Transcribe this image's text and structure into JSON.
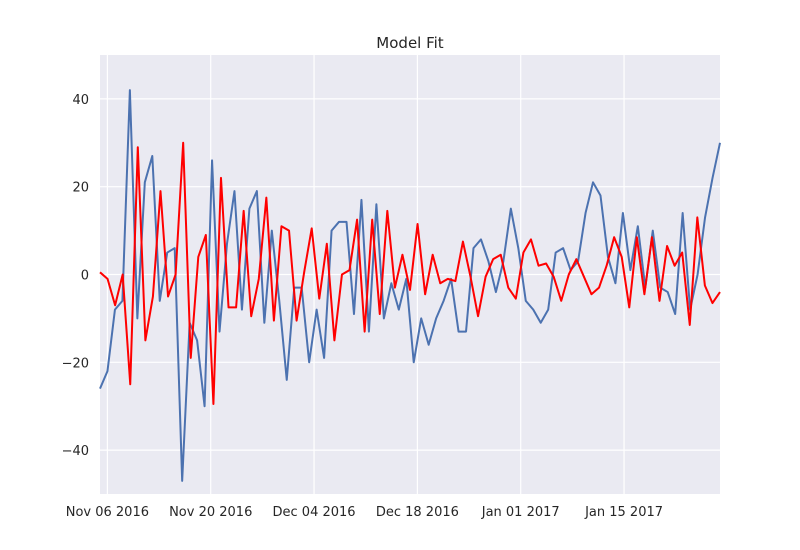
{
  "chart_data": {
    "type": "line",
    "title": "Model Fit",
    "xlabel": "",
    "ylabel": "",
    "x_start": "2016-11-05",
    "x_end": "2017-01-28",
    "xlim": [
      "2016-11-05",
      "2017-01-28"
    ],
    "ylim": [
      -50,
      50
    ],
    "x_ticks": [
      {
        "date": "2016-11-06",
        "label": "Nov 06 2016"
      },
      {
        "date": "2016-11-20",
        "label": "Nov 20 2016"
      },
      {
        "date": "2016-12-04",
        "label": "Dec 04 2016"
      },
      {
        "date": "2016-12-18",
        "label": "Dec 18 2016"
      },
      {
        "date": "2017-01-01",
        "label": "Jan 01 2017"
      },
      {
        "date": "2017-01-15",
        "label": "Jan 15 2017"
      }
    ],
    "y_ticks": [
      {
        "value": 40,
        "label": "40"
      },
      {
        "value": 20,
        "label": "20"
      },
      {
        "value": 0,
        "label": "0"
      },
      {
        "value": -20,
        "label": "−20"
      },
      {
        "value": -40,
        "label": "−40"
      }
    ],
    "grid": true,
    "legend": "none",
    "series": [
      {
        "color": "#4c72b0",
        "values": [
          -26,
          -22,
          -8,
          -6,
          42,
          -10,
          21,
          27,
          -6,
          5,
          6,
          -47,
          -11,
          -15,
          -30,
          26,
          -13,
          7,
          19,
          -8,
          15,
          19,
          -11,
          10,
          -6,
          -24,
          -3,
          -3,
          -20,
          -8,
          -19,
          10,
          12,
          12,
          -9,
          17,
          -13,
          16,
          -10,
          -2,
          -8,
          -1,
          -20,
          -10,
          -16,
          -10,
          -6,
          -1,
          -13,
          -13,
          6,
          8,
          3,
          -4,
          3,
          15,
          6,
          -6,
          -8,
          -11,
          -8,
          5,
          6,
          1,
          3,
          14,
          21,
          18,
          4,
          -2,
          14,
          1,
          11,
          -3,
          10,
          -3,
          -4,
          -9,
          14,
          -8,
          0,
          13,
          22,
          30
        ]
      },
      {
        "color": "#ff0000",
        "values": [
          0.5,
          -1,
          -7,
          0,
          -25,
          29,
          -15,
          -5,
          19,
          -5,
          0,
          30,
          -19,
          4,
          9,
          -29.5,
          22,
          -7.5,
          -7.5,
          14.5,
          -9.5,
          -1,
          17.5,
          -10.5,
          11,
          10,
          -10.5,
          0.5,
          10.5,
          -5.5,
          7,
          -15,
          0,
          1,
          12.5,
          -13,
          12.5,
          -9,
          14.5,
          -3,
          4.5,
          -3.5,
          11.5,
          -4.5,
          4.5,
          -2,
          -1,
          -1.5,
          7.5,
          -0.5,
          -9.5,
          -0.5,
          3.5,
          4.5,
          -3,
          -5.5,
          5,
          8,
          2,
          2.5,
          -0.5,
          -6,
          0,
          3.5,
          -0.5,
          -4.5,
          -3,
          2,
          8.5,
          4,
          -7.5,
          8.5,
          -4.5,
          8.5,
          -6,
          6.5,
          2,
          5,
          -11.5,
          13,
          -2.5,
          -6.5,
          -4
        ]
      }
    ]
  }
}
